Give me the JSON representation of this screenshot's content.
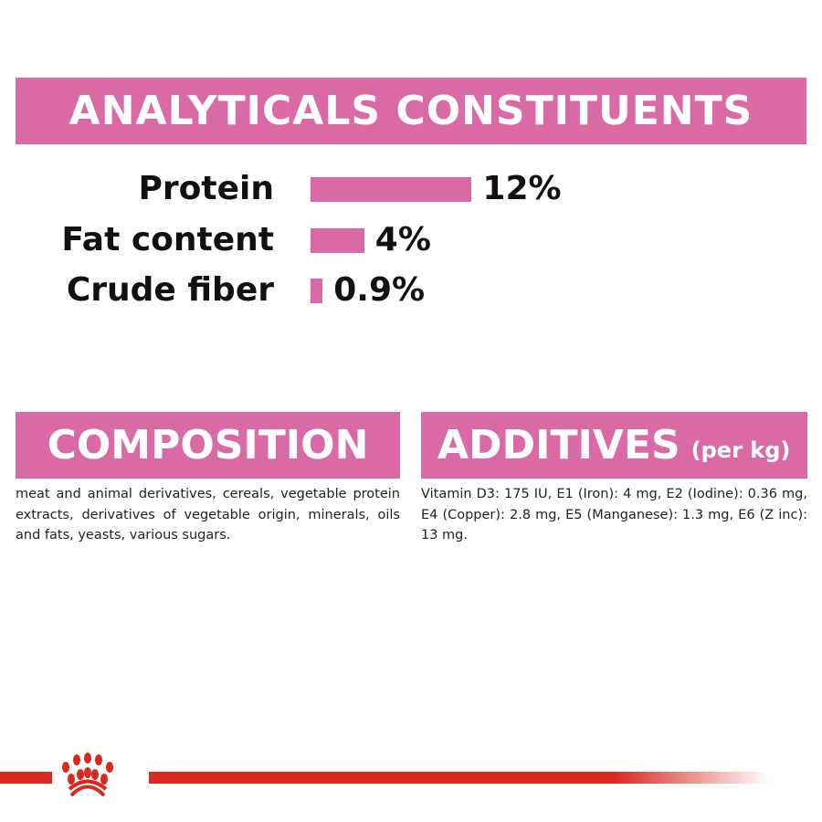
{
  "colors": {
    "pink": "#d96aa6",
    "brand_red": "#d9291f"
  },
  "analytical": {
    "title": "ANALYTICALS CONSTITUENTS",
    "rows": [
      {
        "label": "Protein",
        "value": "12%",
        "percent": 12
      },
      {
        "label": "Fat content",
        "value": "4%",
        "percent": 4
      },
      {
        "label": "Crude fiber",
        "value": "0.9%",
        "percent": 0.9
      }
    ]
  },
  "composition": {
    "title": "COMPOSITION",
    "text": "meat and animal derivatives, cereals, vegetable protein extracts, derivatives of vegetable origin, minerals, oils and fats, yeasts, various sugars."
  },
  "additives": {
    "title": "ADDITIVES",
    "unit": "(per kg)",
    "text": "Vitamin D3: 175 IU, E1 (Iron): 4 mg, E2 (Iodine): 0.36 mg, E4 (Copper): 2.8 mg, E5 (Manganese): 1.3 mg, E6 (Z inc): 13 mg."
  },
  "footer": {
    "logo_icon": "crown-icon"
  }
}
